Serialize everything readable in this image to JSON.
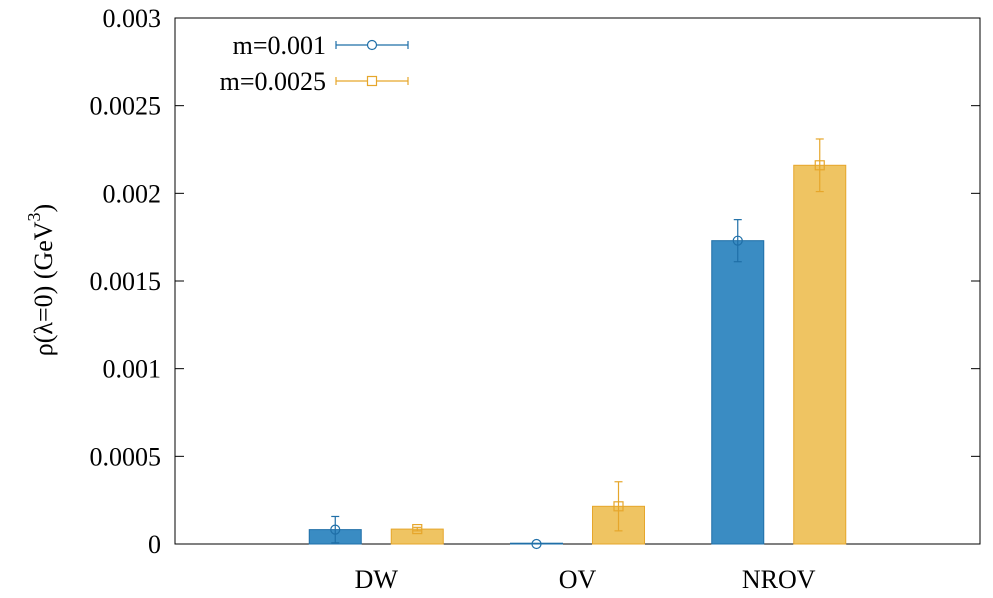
{
  "chart_data": {
    "type": "bar",
    "categories": [
      "DW",
      "OV",
      "NROV"
    ],
    "series": [
      {
        "name": "m=0.001",
        "color": "#3a8cc3",
        "edge_color": "#1f6fa8",
        "marker": "circle",
        "values": [
          8.2e-05,
          0.0,
          0.00173
        ],
        "errors": [
          7.5e-05,
          0.0,
          0.00012
        ]
      },
      {
        "name": "m=0.0025",
        "color": "#efc462",
        "edge_color": "#e6a62b",
        "marker": "square",
        "values": [
          8.5e-05,
          0.000215,
          0.00216
        ],
        "errors": [
          1e-05,
          0.00014,
          0.00015
        ]
      }
    ],
    "ylabel": {
      "prefix": "ρ(λ=0) (GeV",
      "superscript": "3",
      "suffix": ")"
    },
    "ylim": [
      0,
      0.003
    ],
    "yticks": [
      "0",
      "0.0005",
      "0.001",
      "0.0015",
      "0.002",
      "0.0025",
      "0.003"
    ],
    "grid": false,
    "legend_position": "top-left"
  }
}
